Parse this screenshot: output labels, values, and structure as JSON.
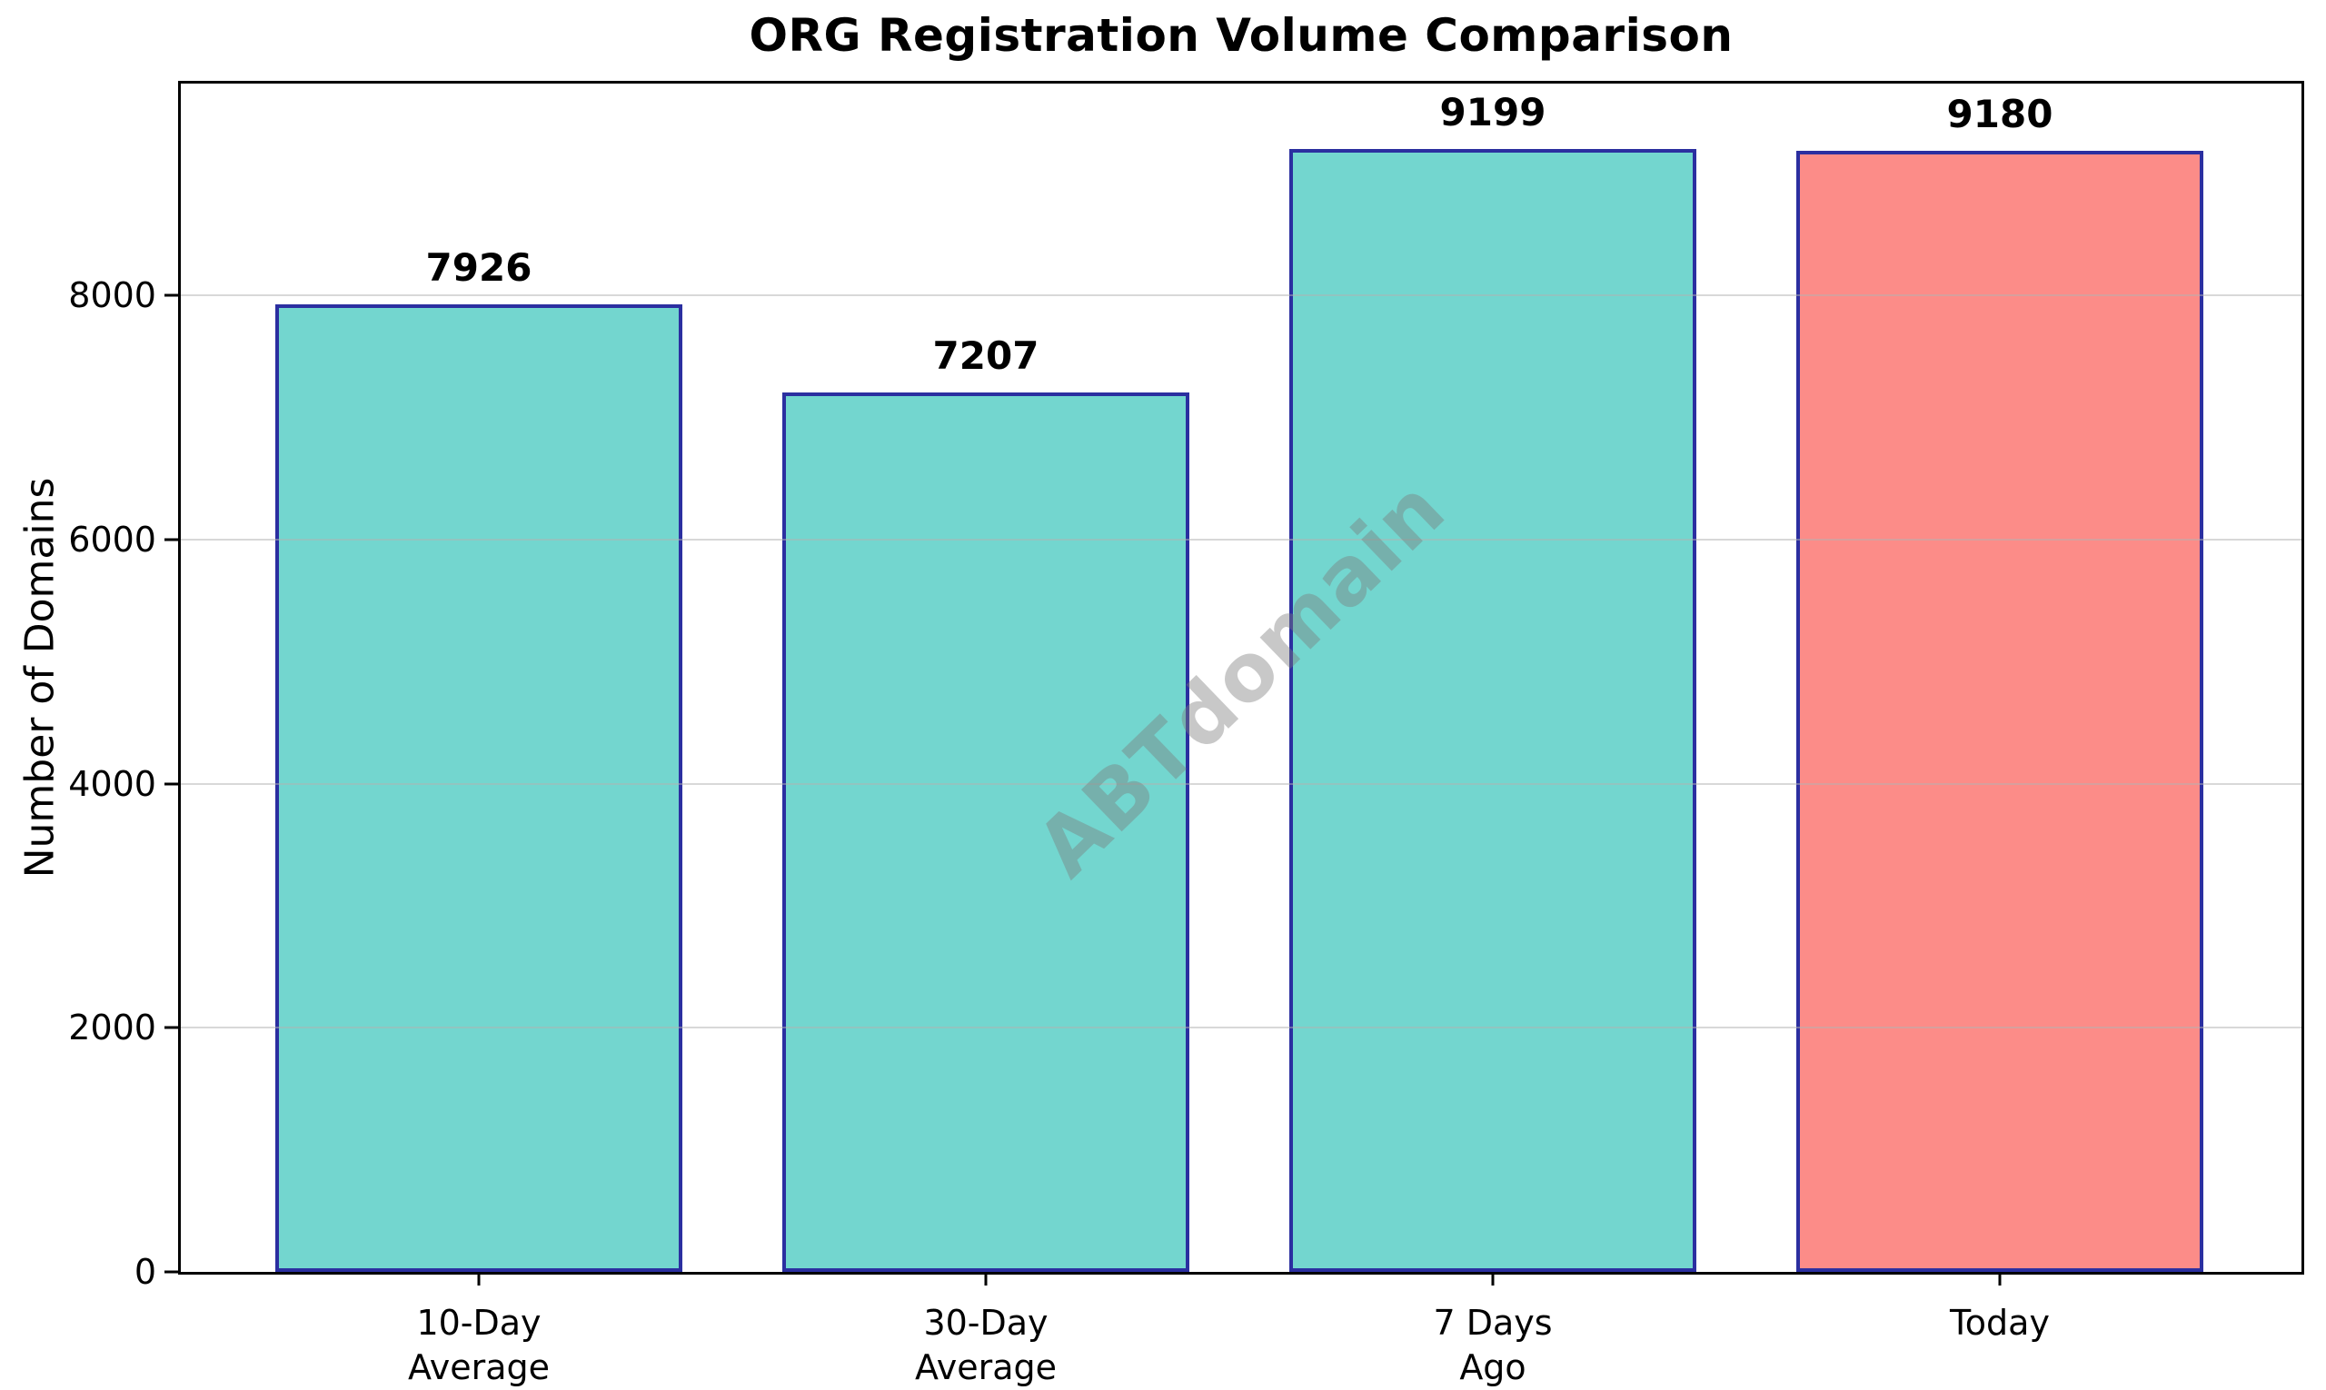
{
  "chart_data": {
    "type": "bar",
    "title": "ORG Registration Volume Comparison",
    "ylabel": "Number of Domains",
    "categories": [
      "10-Day\nAverage",
      "30-Day\nAverage",
      "7 Days\nAgo",
      "Today"
    ],
    "values": [
      7926,
      7207,
      9199,
      9180
    ],
    "value_labels": [
      "7926",
      "7207",
      "9199",
      "9180"
    ],
    "bar_colors": [
      "#73d6cf",
      "#73d6cf",
      "#73d6cf",
      "#fc8c88"
    ],
    "bar_edge_color": "#2b2fa0",
    "yticks": [
      0,
      2000,
      4000,
      6000,
      8000
    ],
    "ylim": [
      0,
      9734
    ],
    "grid": true,
    "grid_color": "#b2b2b2",
    "frame_color": "#000000",
    "watermark": "ABTdomain",
    "legend": null
  }
}
